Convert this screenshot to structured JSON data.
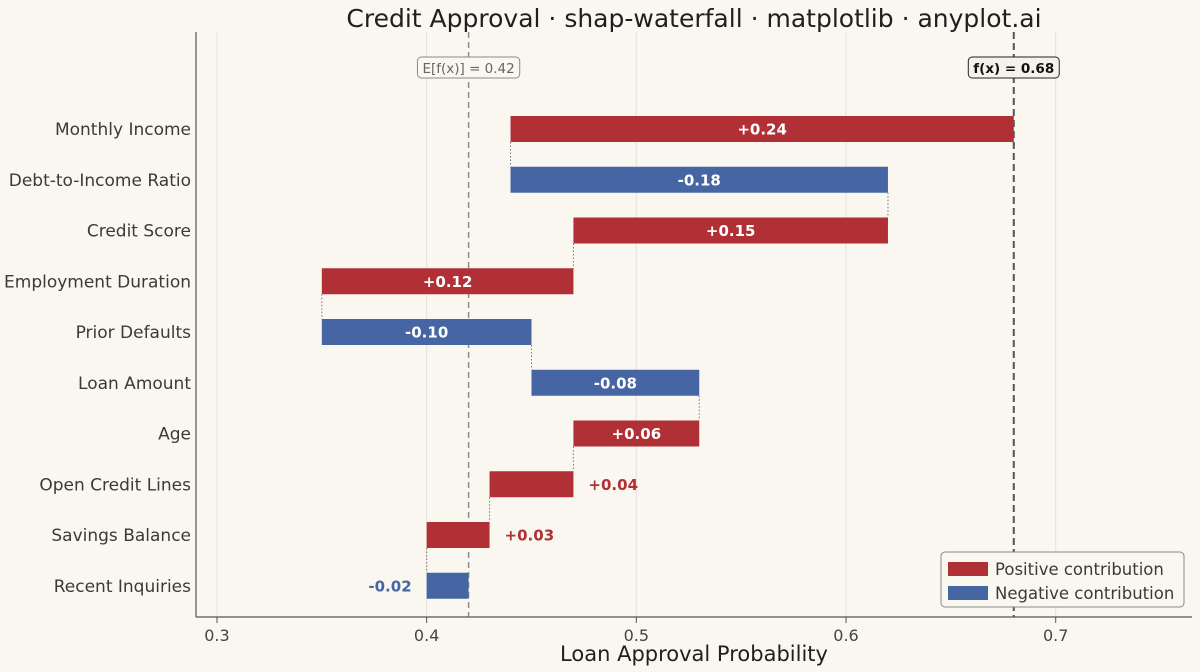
{
  "chart_data": {
    "type": "waterfall",
    "orientation": "horizontal",
    "title": "Credit Approval · shap-waterfall · matplotlib · anyplot.ai",
    "xlabel": "Loan Approval Probability",
    "ylabel": "",
    "xlim": [
      0.29,
      0.765
    ],
    "xticks": [
      0.3,
      0.4,
      0.5,
      0.6,
      0.7
    ],
    "xtick_labels": [
      "0.3",
      "0.4",
      "0.5",
      "0.6",
      "0.7"
    ],
    "grid": "vertical",
    "base_value": 0.42,
    "base_label": "E[f(x)] = 0.42",
    "output_value": 0.68,
    "output_label": "f(x) = 0.68",
    "features": [
      {
        "name": "Monthly Income",
        "value": 0.24,
        "label": "+0.24",
        "start": 0.44,
        "end": 0.68
      },
      {
        "name": "Debt-to-Income Ratio",
        "value": -0.18,
        "label": "-0.18",
        "start": 0.62,
        "end": 0.44
      },
      {
        "name": "Credit Score",
        "value": 0.15,
        "label": "+0.15",
        "start": 0.47,
        "end": 0.62
      },
      {
        "name": "Employment Duration",
        "value": 0.12,
        "label": "+0.12",
        "start": 0.35,
        "end": 0.47
      },
      {
        "name": "Prior Defaults",
        "value": -0.1,
        "label": "-0.10",
        "start": 0.45,
        "end": 0.35
      },
      {
        "name": "Loan Amount",
        "value": -0.08,
        "label": "-0.08",
        "start": 0.53,
        "end": 0.45
      },
      {
        "name": "Age",
        "value": 0.06,
        "label": "+0.06",
        "start": 0.47,
        "end": 0.53
      },
      {
        "name": "Open Credit Lines",
        "value": 0.04,
        "label": "+0.04",
        "start": 0.43,
        "end": 0.47
      },
      {
        "name": "Savings Balance",
        "value": 0.03,
        "label": "+0.03",
        "start": 0.4,
        "end": 0.43
      },
      {
        "name": "Recent Inquiries",
        "value": -0.02,
        "label": "-0.02",
        "start": 0.42,
        "end": 0.4
      }
    ],
    "legend": {
      "placement": "bottom-right",
      "items": [
        {
          "label": "Positive contribution",
          "color": "#b03035"
        },
        {
          "label": "Negative contribution",
          "color": "#4566a3"
        }
      ]
    },
    "colors": {
      "positive": "#b03035",
      "negative": "#4566a3",
      "background": "#faf7f1",
      "text": "#3a3a3a"
    }
  }
}
